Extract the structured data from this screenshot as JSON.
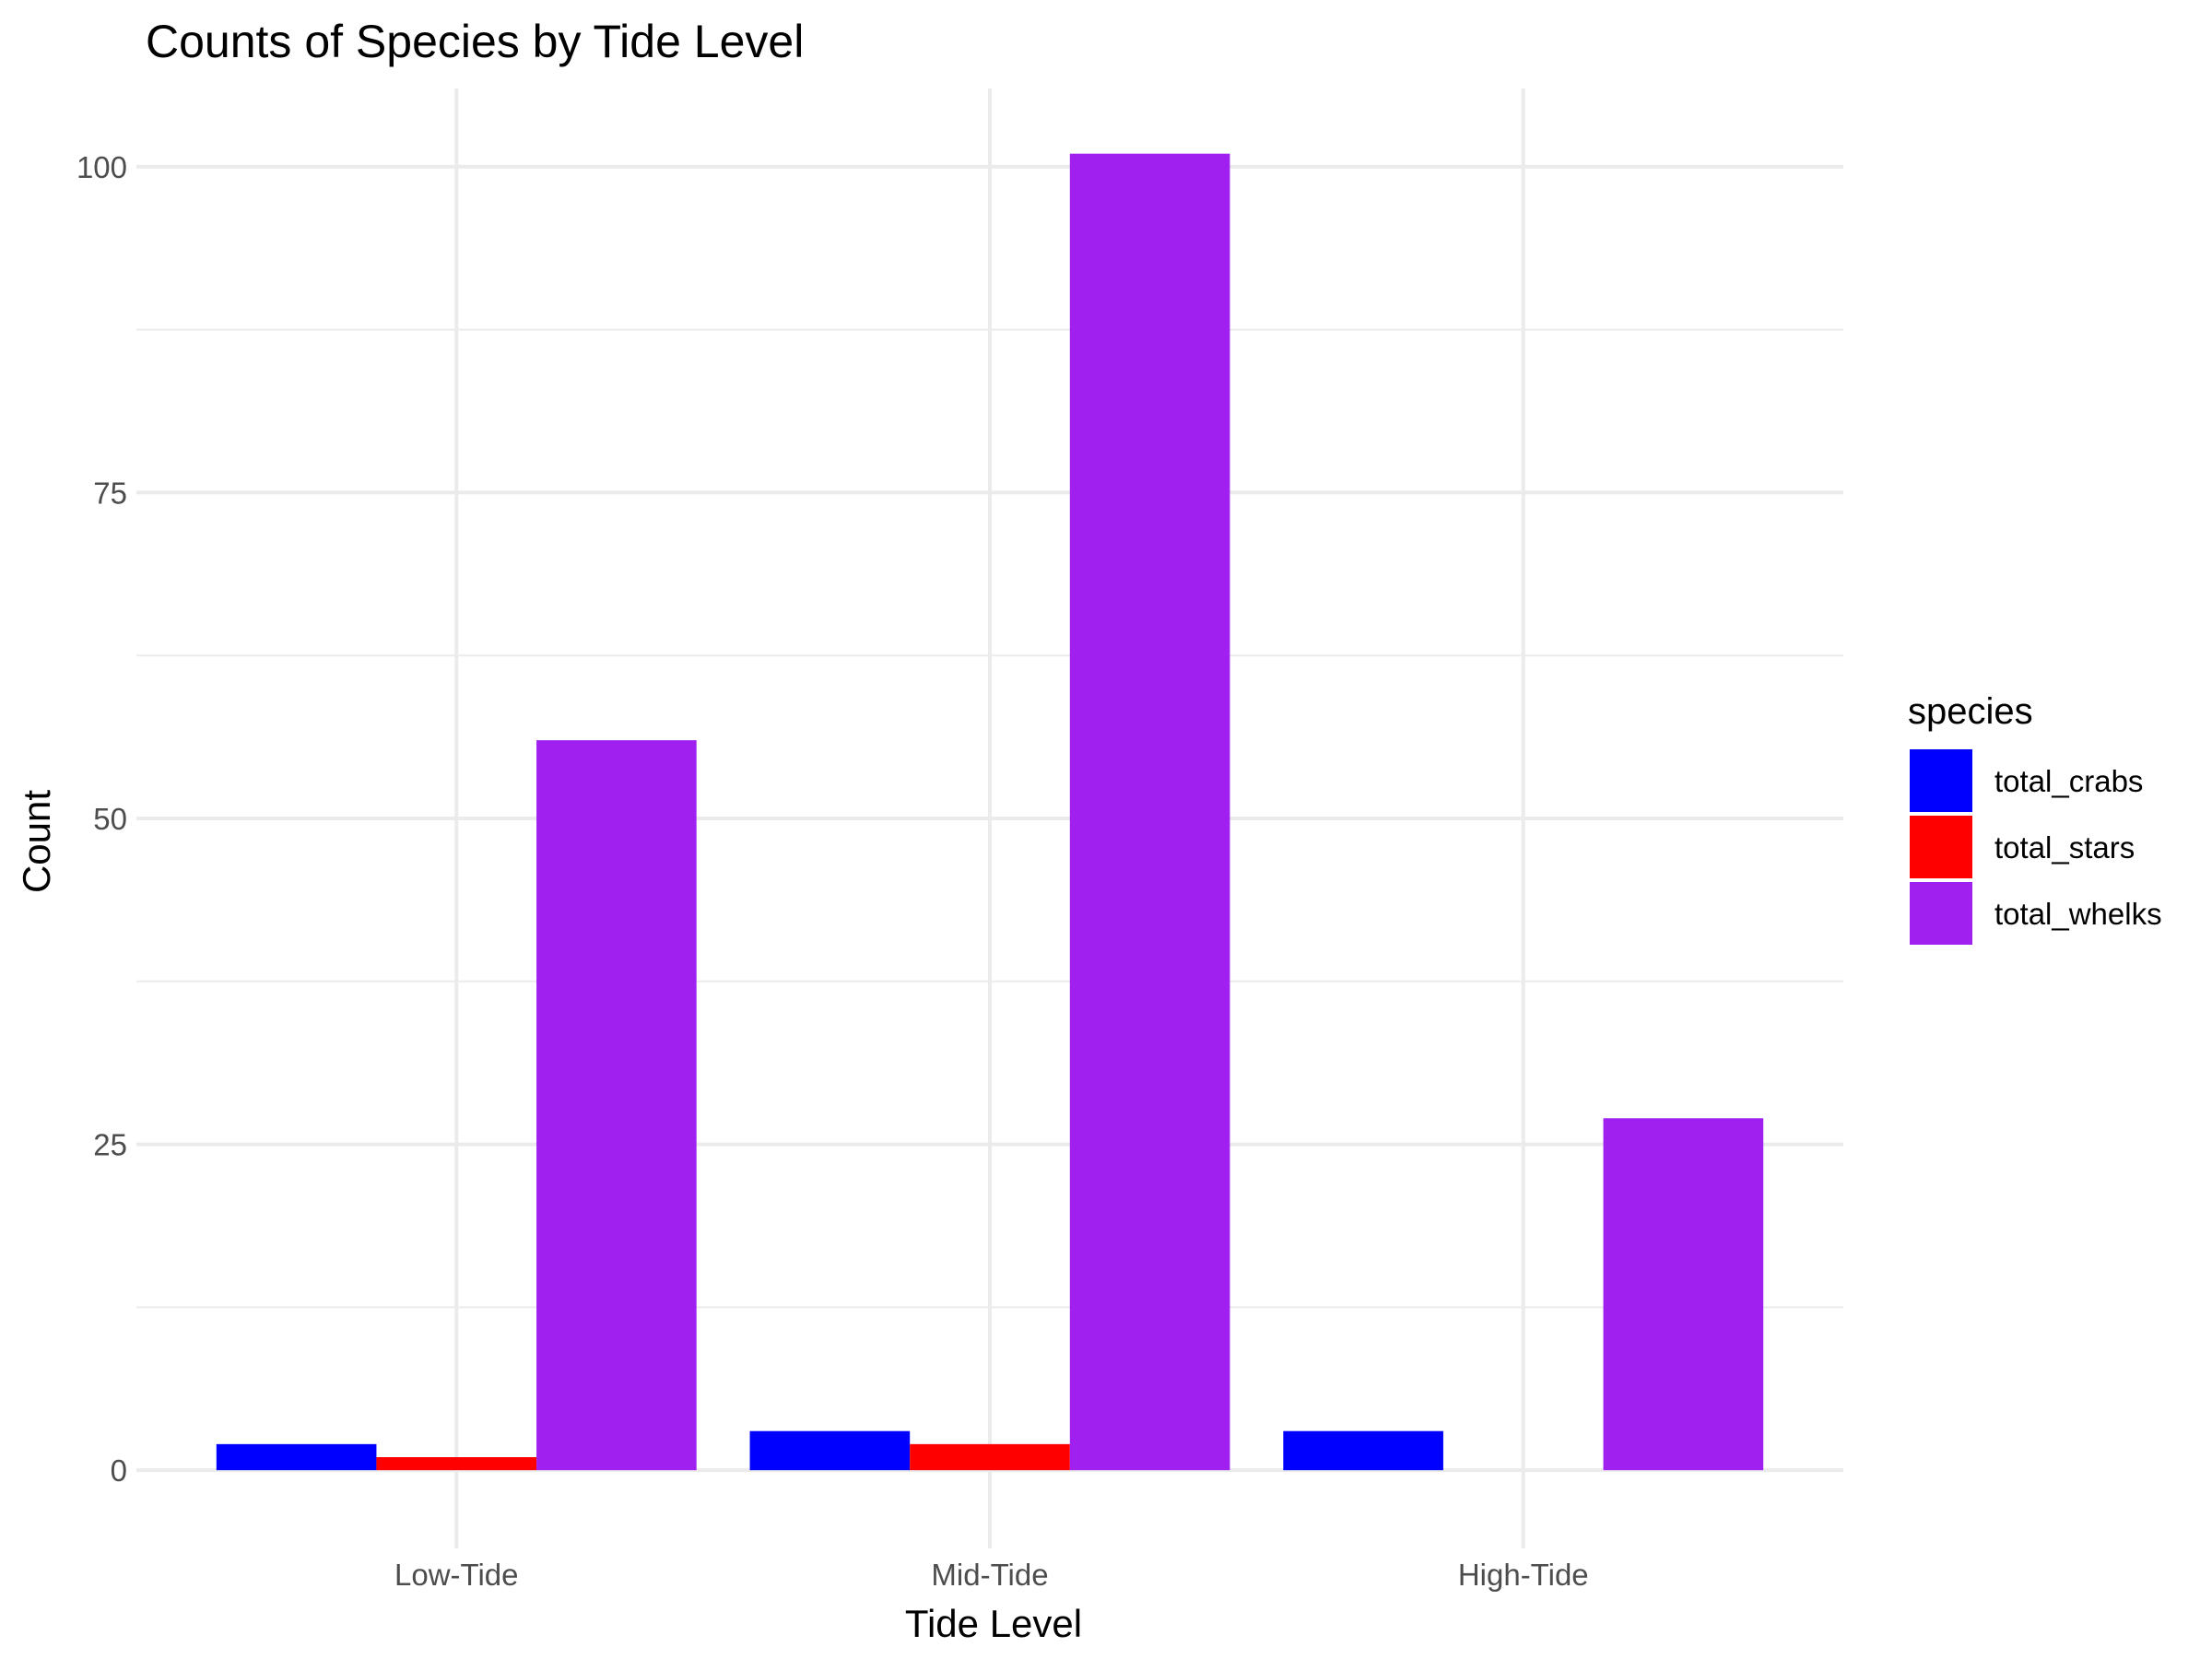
{
  "chart_data": {
    "type": "bar",
    "title": "Counts of Species by Tide Level",
    "xlabel": "Tide Level",
    "ylabel": "Count",
    "categories": [
      "Low-Tide",
      "Mid-Tide",
      "High-Tide"
    ],
    "series": [
      {
        "name": "total_crabs",
        "color": "#0000ff",
        "values": [
          2,
          3,
          3
        ]
      },
      {
        "name": "total_stars",
        "color": "#ff0000",
        "values": [
          1,
          2,
          0
        ]
      },
      {
        "name": "total_whelks",
        "color": "#a020f0",
        "values": [
          56,
          101,
          27
        ]
      }
    ],
    "ylim": [
      -6,
      106
    ],
    "yticks": [
      0,
      25,
      50,
      75,
      100
    ],
    "yticks_minor": [
      12.5,
      37.5,
      62.5,
      87.5
    ],
    "grid": true,
    "legend": {
      "title": "species",
      "position": "right"
    }
  }
}
